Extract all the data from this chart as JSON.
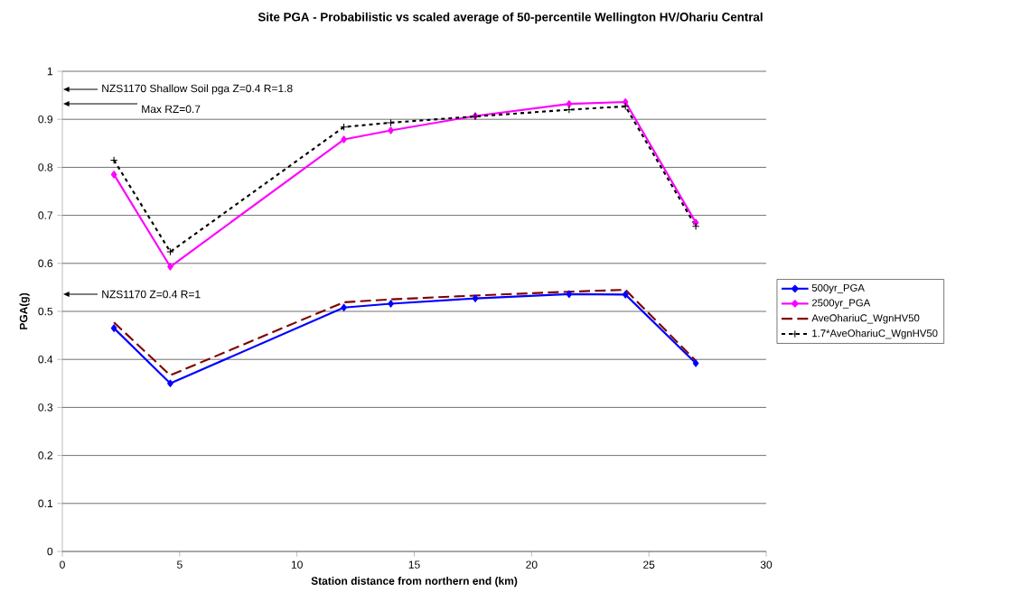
{
  "chart_data": {
    "type": "line",
    "title": "Site PGA - Probabilistic vs scaled average of  50-percentile Wellington HV/Ohariu Central",
    "xlabel": "Station distance from northern end  (km)",
    "ylabel": "PGA(g)",
    "x": [
      2.2,
      4.6,
      12,
      14,
      17.6,
      21.6,
      24,
      27
    ],
    "series": [
      {
        "name": "500yr_PGA",
        "color": "#0000ff",
        "marker": "diamond",
        "line_style": "solid",
        "values": [
          0.465,
          0.35,
          0.508,
          0.516,
          0.527,
          0.536,
          0.535,
          0.392
        ]
      },
      {
        "name": "2500yr_PGA",
        "color": "#ff00ff",
        "marker": "diamond",
        "line_style": "solid",
        "values": [
          0.785,
          0.593,
          0.858,
          0.877,
          0.907,
          0.932,
          0.936,
          0.685
        ]
      },
      {
        "name": "AveOhariuC_WgnHV50",
        "color": "#800000",
        "marker": "none",
        "line_style": "dashed",
        "values": [
          0.477,
          0.367,
          0.519,
          0.525,
          0.533,
          0.541,
          0.545,
          0.397
        ]
      },
      {
        "name": "1.7*AveOhariuC_WgnHV50",
        "color": "#000000",
        "marker": "cross",
        "line_style": "dotted",
        "values": [
          0.815,
          0.624,
          0.884,
          0.893,
          0.906,
          0.92,
          0.927,
          0.677
        ]
      }
    ],
    "annotations": [
      "NZS1170 Shallow Soil pga Z=0.4 R=1.8",
      "Max RZ=0.7",
      "NZS1170 Z=0.4 R=1"
    ],
    "xlim": [
      0,
      30
    ],
    "ylim": [
      0,
      1
    ],
    "xticks": [
      0,
      5,
      10,
      15,
      20,
      25,
      30
    ],
    "yticks": [
      0,
      0.1,
      0.2,
      0.3,
      0.4,
      0.5,
      0.6,
      0.7,
      0.8,
      0.9,
      1
    ],
    "grid": "y",
    "legend": "right"
  }
}
